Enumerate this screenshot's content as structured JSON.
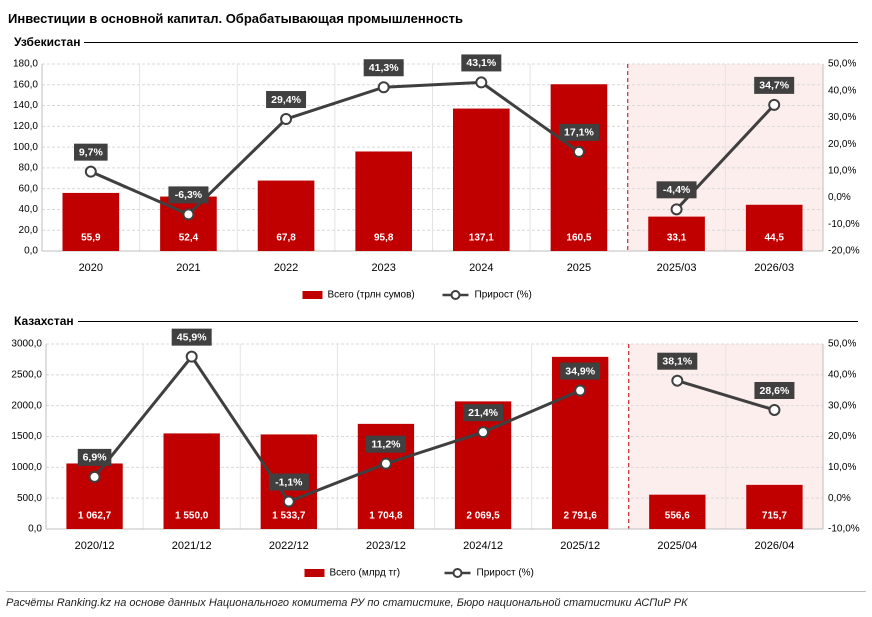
{
  "title": "Инвестиции в основной капитал. Обрабатывающая промышленность",
  "footnote": "Расчёты Ranking.kz на основе данных Национального комитета РУ по статистике, Бюро национальной статистики АСПиР РК",
  "colors": {
    "bar": "#C00000",
    "line": "#3F3F3F",
    "forecast_bg": "#FDEEEE",
    "forecast_border": "#C00000",
    "label_bg": "#404040"
  },
  "chart_data": [
    {
      "type": "bar",
      "section_label": "Узбекистан",
      "categories": [
        "2020",
        "2021",
        "2022",
        "2023",
        "2024",
        "2025",
        "2025/03",
        "2026/03"
      ],
      "series": [
        {
          "name": "Всего (трлн сумов)",
          "type": "bar",
          "axis": "left",
          "values": [
            55.9,
            52.4,
            67.8,
            95.8,
            137.1,
            160.5,
            33.1,
            44.5
          ],
          "value_labels": [
            "55,9",
            "52,4",
            "67,8",
            "95,8",
            "137,1",
            "160,5",
            "33,1",
            "44,5"
          ]
        },
        {
          "name": "Прирост (%)",
          "type": "line",
          "axis": "right",
          "values": [
            9.7,
            -6.3,
            29.4,
            41.3,
            43.1,
            17.1,
            -4.4,
            34.7
          ],
          "value_labels": [
            "9,7%",
            "-6,3%",
            "29,4%",
            "41,3%",
            "43,1%",
            "17,1%",
            "-4,4%",
            "34,7%"
          ],
          "segments": [
            [
              0,
              5
            ],
            [
              6,
              7
            ]
          ]
        }
      ],
      "left_axis": {
        "min": 0,
        "max": 180,
        "ticks": [
          "0,0",
          "20,0",
          "40,0",
          "60,0",
          "80,0",
          "100,0",
          "120,0",
          "140,0",
          "160,0",
          "180,0"
        ]
      },
      "right_axis": {
        "min": -20,
        "max": 50,
        "ticks": [
          "-20,0%",
          "-10,0%",
          "0,0%",
          "10,0%",
          "20,0%",
          "30,0%",
          "40,0%",
          "50,0%"
        ]
      },
      "forecast_from_index": 6,
      "legend": [
        "Всего (трлн сумов)",
        "Прирост (%)"
      ],
      "legend_position": "bottom"
    },
    {
      "type": "bar",
      "section_label": "Казахстан",
      "categories": [
        "2020/12",
        "2021/12",
        "2022/12",
        "2023/12",
        "2024/12",
        "2025/12",
        "2025/04",
        "2026/04"
      ],
      "series": [
        {
          "name": "Всего (млрд тг)",
          "type": "bar",
          "axis": "left",
          "values": [
            1062.7,
            1550.0,
            1533.7,
            1704.8,
            2069.5,
            2791.6,
            556.6,
            715.7
          ],
          "value_labels": [
            "1 062,7",
            "1 550,0",
            "1 533,7",
            "1 704,8",
            "2 069,5",
            "2 791,6",
            "556,6",
            "715,7"
          ]
        },
        {
          "name": "Прирост (%)",
          "type": "line",
          "axis": "right",
          "values": [
            6.9,
            45.9,
            -1.1,
            11.2,
            21.4,
            34.9,
            38.1,
            28.6
          ],
          "value_labels": [
            "6,9%",
            "45,9%",
            "-1,1%",
            "11,2%",
            "21,4%",
            "34,9%",
            "38,1%",
            "28,6%"
          ],
          "segments": [
            [
              0,
              5
            ],
            [
              6,
              7
            ]
          ]
        }
      ],
      "left_axis": {
        "min": 0,
        "max": 3000,
        "ticks": [
          "0,0",
          "500,0",
          "1000,0",
          "1500,0",
          "2000,0",
          "2500,0",
          "3000,0"
        ]
      },
      "right_axis": {
        "min": -10,
        "max": 50,
        "ticks": [
          "-10,0%",
          "0,0%",
          "10,0%",
          "20,0%",
          "30,0%",
          "40,0%",
          "50,0%"
        ]
      },
      "forecast_from_index": 6,
      "legend": [
        "Всего (млрд тг)",
        "Прирост (%)"
      ],
      "legend_position": "bottom"
    }
  ]
}
